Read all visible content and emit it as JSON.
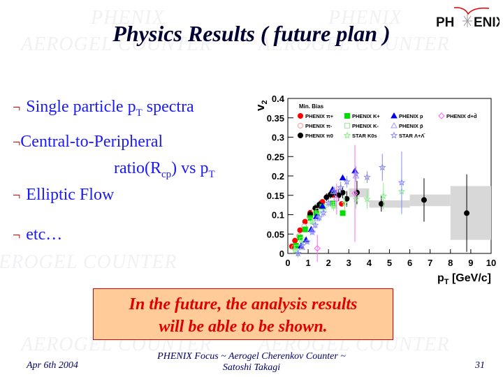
{
  "title": "Physics Results ( future plan )",
  "logo_text": "PHENIX",
  "watermark": [
    "PHENIX",
    "AEROGEL COUNTER"
  ],
  "bullets": [
    {
      "marker": "¬",
      "text": "Single particle p",
      "sub": "T",
      "rest": " spectra"
    },
    {
      "marker": "¬",
      "text": "Central-to-Peripheral"
    },
    {
      "text2": "ratio(R",
      "sub": "cp",
      "mid": ") vs p",
      "sub2": "T"
    },
    {
      "marker": "¬",
      "text": "Elliptic Flow"
    },
    {
      "marker": "¬",
      "text": "etc…"
    }
  ],
  "note": {
    "line1": "In the future, the analysis results",
    "line2": "will be able to be shown."
  },
  "footer": {
    "date": "Apr 6th 2004",
    "center1": "PHENIX Focus  ~ Aerogel Cherenkov Counter ~",
    "center2": "Satoshi Takagi",
    "page": "31"
  },
  "chart_data": {
    "type": "scatter",
    "xlabel": "p_T [GeV/c]",
    "ylabel": "v_2",
    "xlim": [
      0,
      10
    ],
    "ylim": [
      0,
      0.4
    ],
    "xticks": [
      "0",
      "1",
      "2",
      "3",
      "4",
      "5",
      "6",
      "7",
      "8",
      "9",
      "10"
    ],
    "yticks": [
      "0",
      "0.05",
      "0.1",
      "0.15",
      "0.2",
      "0.25",
      "0.3",
      "0.35",
      "0.4"
    ],
    "legend_title": "Min. Bias",
    "legend_placement": "top",
    "series": [
      {
        "name": "PHENIX π+",
        "color": "#ff0000",
        "marker": "circle",
        "filled": true,
        "points": [
          [
            0.2,
            0.018
          ],
          [
            0.35,
            0.033
          ],
          [
            0.6,
            0.06
          ],
          [
            0.85,
            0.082
          ],
          [
            1.1,
            0.105
          ],
          [
            1.4,
            0.117
          ],
          [
            1.7,
            0.133
          ],
          [
            2.2,
            0.151
          ],
          [
            2.65,
            0.128
          ]
        ]
      },
      {
        "name": "PHENIX π-",
        "color": "#ff9999",
        "marker": "circle",
        "filled": false,
        "points": [
          [
            0.3,
            0.015
          ],
          [
            0.55,
            0.045
          ],
          [
            0.8,
            0.07
          ],
          [
            1.05,
            0.095
          ],
          [
            1.3,
            0.112
          ],
          [
            2.0,
            0.148
          ],
          [
            2.5,
            0.16
          ]
        ]
      },
      {
        "name": "PHENIX π0",
        "color": "#000000",
        "marker": "circle",
        "filled": true,
        "points": [
          [
            1.1,
            0.101
          ],
          [
            1.35,
            0.117
          ],
          [
            1.55,
            0.126
          ],
          [
            1.9,
            0.145
          ],
          [
            2.1,
            0.152
          ],
          [
            2.3,
            0.156
          ],
          [
            2.5,
            0.15
          ],
          [
            2.7,
            0.157
          ],
          [
            2.9,
            0.141
          ],
          [
            3.4,
            0.157
          ],
          [
            4.6,
            0.128
          ],
          [
            6.7,
            0.138
          ],
          [
            8.8,
            0.104
          ]
        ],
        "errors": [
          0.01,
          0.01,
          0.01,
          0.01,
          0.01,
          0.012,
          0.015,
          0.015,
          0.02,
          0.03,
          0.02,
          0.056,
          0.1
        ]
      },
      {
        "name": "PHENIX K+",
        "color": "#00dd00",
        "marker": "square",
        "filled": true,
        "points": [
          [
            0.4,
            0.02
          ],
          [
            0.6,
            0.041
          ],
          [
            0.85,
            0.062
          ],
          [
            1.1,
            0.091
          ],
          [
            1.4,
            0.104
          ],
          [
            1.7,
            0.121
          ],
          [
            2.2,
            0.129
          ],
          [
            2.7,
            0.104
          ]
        ]
      },
      {
        "name": "PHENIX K-",
        "color": "#99ee99",
        "marker": "square",
        "filled": false,
        "points": [
          [
            0.45,
            0.015
          ],
          [
            0.7,
            0.035
          ],
          [
            1.1,
            0.085
          ],
          [
            1.5,
            0.11
          ],
          [
            2.25,
            0.125
          ]
        ]
      },
      {
        "name": "STAR K0s",
        "color": "#88ee88",
        "marker": "star",
        "filled": false,
        "points": [
          [
            0.35,
            0.008
          ],
          [
            0.7,
            0.028
          ],
          [
            1.2,
            0.082
          ],
          [
            1.8,
            0.118
          ],
          [
            2.25,
            0.122
          ],
          [
            2.8,
            0.13
          ],
          [
            3.35,
            0.14
          ],
          [
            3.9,
            0.14
          ],
          [
            4.7,
            0.148
          ],
          [
            5.6,
            0.16
          ]
        ],
        "errors": [
          0.005,
          0.006,
          0.008,
          0.01,
          0.012,
          0.02,
          0.025,
          0.025,
          0.035,
          0.06
        ]
      },
      {
        "name": "PHENIX p",
        "color": "#0000ee",
        "marker": "triangle",
        "filled": true,
        "points": [
          [
            0.65,
            0.019
          ],
          [
            0.9,
            0.035
          ],
          [
            1.15,
            0.062
          ],
          [
            1.4,
            0.095
          ],
          [
            1.7,
            0.122
          ],
          [
            2.2,
            0.165
          ],
          [
            2.7,
            0.195
          ],
          [
            3.3,
            0.213
          ]
        ]
      },
      {
        "name": "PHENIX p̄",
        "color": "#9999ff",
        "marker": "triangle",
        "filled": false,
        "points": [
          [
            0.7,
            0.015
          ],
          [
            1.2,
            0.06
          ],
          [
            1.45,
            0.09
          ],
          [
            2.25,
            0.16
          ],
          [
            3.35,
            0.2
          ]
        ]
      },
      {
        "name": "STAR Λ+Λ̄",
        "color": "#8888ff",
        "marker": "star",
        "filled": false,
        "points": [
          [
            0.5,
            0.0
          ],
          [
            0.7,
            0.02
          ],
          [
            0.95,
            0.03
          ],
          [
            1.2,
            0.055
          ],
          [
            1.35,
            0.073
          ],
          [
            1.55,
            0.093
          ],
          [
            1.75,
            0.105
          ],
          [
            2.0,
            0.13
          ],
          [
            2.3,
            0.16
          ],
          [
            2.6,
            0.17
          ],
          [
            2.9,
            0.185
          ],
          [
            3.35,
            0.205
          ],
          [
            3.9,
            0.197
          ],
          [
            4.65,
            0.222
          ],
          [
            5.6,
            0.183
          ]
        ],
        "errors": [
          0.01,
          0.006,
          0.006,
          0.007,
          0.008,
          0.008,
          0.01,
          0.01,
          0.012,
          0.015,
          0.015,
          0.02,
          0.015,
          0.035,
          0.08
        ]
      },
      {
        "name": "PHENIX d+d̄",
        "color": "#ff66ff",
        "marker": "diamond",
        "filled": false,
        "points": [
          [
            1.45,
            0.013
          ],
          [
            2.4,
            0.14
          ],
          [
            3.3,
            0.155
          ]
        ],
        "errors": [
          0.035,
          0.04,
          0.125
        ]
      }
    ],
    "systematic_bands": [
      [
        3,
        4,
        0.145,
        0.168
      ],
      [
        4,
        6,
        0.118,
        0.137
      ],
      [
        6,
        8,
        0.122,
        0.152
      ],
      [
        8,
        10,
        0.035,
        0.174
      ]
    ]
  }
}
